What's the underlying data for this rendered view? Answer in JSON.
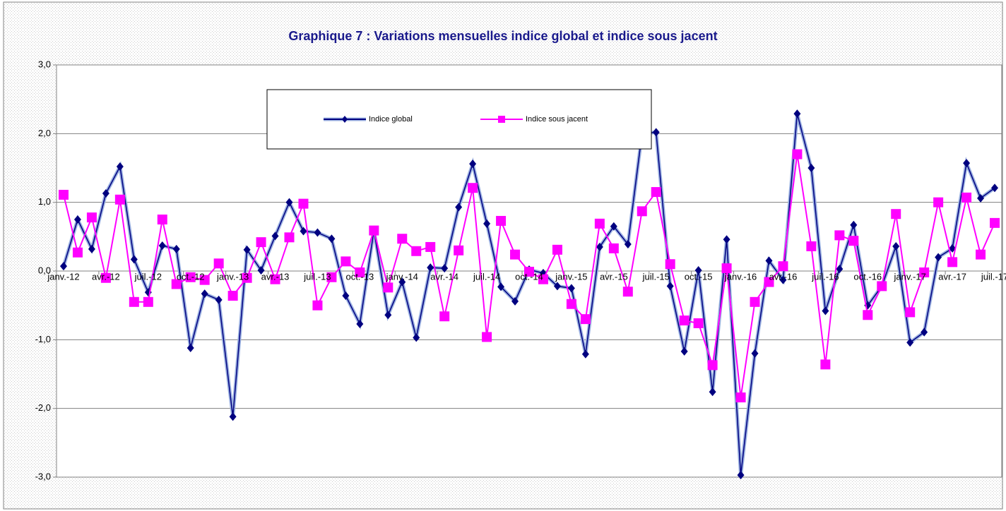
{
  "chart_data": {
    "type": "line",
    "title": "Graphique 7 : Variations mensuelles indice global et indice sous jacent",
    "categories": [
      "janv.-12",
      null,
      null,
      "avr.-12",
      null,
      null,
      "juil.-12",
      null,
      null,
      "oct.-12",
      null,
      null,
      "janv.-13",
      null,
      null,
      "avr.-13",
      null,
      null,
      "juil.-13",
      null,
      null,
      "oct.-13",
      null,
      null,
      "janv.-14",
      null,
      null,
      "avr.-14",
      null,
      null,
      "juil.-14",
      null,
      null,
      "oct.-14",
      null,
      null,
      "janv.-15",
      null,
      null,
      "avr.-15",
      null,
      null,
      "juil.-15",
      null,
      null,
      "oct.-15",
      null,
      null,
      "janv.-16",
      null,
      null,
      "avr.-16",
      null,
      null,
      "juil.-16",
      null,
      null,
      "oct.-16",
      null,
      null,
      "janv.-17",
      null,
      null,
      "avr.-17",
      null,
      null,
      "juil.-17"
    ],
    "series": [
      {
        "name": "Indice global",
        "color": "#000080",
        "marker": "diamond",
        "values": [
          0.07,
          0.75,
          0.32,
          1.13,
          1.52,
          0.17,
          -0.31,
          0.37,
          0.32,
          -1.12,
          -0.33,
          -0.42,
          -2.12,
          0.31,
          0.01,
          0.51,
          1.0,
          0.58,
          0.56,
          0.47,
          -0.36,
          -0.77,
          0.59,
          -0.64,
          -0.16,
          -0.97,
          0.05,
          0.04,
          0.93,
          1.56,
          0.69,
          -0.23,
          -0.44,
          0.02,
          -0.03,
          -0.22,
          -0.25,
          -1.21,
          0.35,
          0.65,
          0.39,
          2.0,
          2.02,
          -0.22,
          -1.17,
          0.01,
          -1.76,
          0.46,
          -2.97,
          -1.2,
          0.15,
          -0.13,
          2.29,
          1.5,
          -0.58,
          0.03,
          0.67,
          -0.5,
          -0.22,
          0.36,
          -1.04,
          -0.89,
          0.2,
          0.33,
          1.57,
          1.06,
          1.21
        ]
      },
      {
        "name": "Indice sous jacent",
        "color": "#ff00ff",
        "marker": "square",
        "values": [
          1.11,
          0.27,
          0.78,
          -0.1,
          1.04,
          -0.45,
          -0.45,
          0.75,
          -0.19,
          -0.09,
          -0.13,
          0.11,
          -0.36,
          -0.1,
          0.42,
          -0.12,
          0.49,
          0.98,
          -0.5,
          -0.09,
          0.14,
          -0.02,
          0.59,
          -0.24,
          0.47,
          0.29,
          0.35,
          -0.66,
          0.3,
          1.21,
          -0.96,
          0.73,
          0.24,
          -0.01,
          -0.12,
          0.31,
          -0.48,
          -0.7,
          0.69,
          0.33,
          -0.3,
          0.87,
          1.15,
          0.1,
          -0.72,
          -0.76,
          -1.37,
          0.04,
          -1.84,
          -0.45,
          -0.16,
          0.07,
          1.7,
          0.36,
          -1.36,
          0.52,
          0.44,
          -0.64,
          -0.22,
          0.83,
          -0.6,
          -0.02,
          1.0,
          0.13,
          1.07,
          0.24,
          0.7
        ]
      }
    ],
    "ylim": [
      -3,
      3
    ],
    "yticks": [
      {
        "value": -3,
        "label": "-3,0"
      },
      {
        "value": -2,
        "label": "-2,0"
      },
      {
        "value": -1,
        "label": "-1,0"
      },
      {
        "value": 0,
        "label": "0,0"
      },
      {
        "value": 1,
        "label": "1,0"
      },
      {
        "value": 2,
        "label": "2,0"
      },
      {
        "value": 3,
        "label": "3,0"
      }
    ],
    "grid": true
  }
}
